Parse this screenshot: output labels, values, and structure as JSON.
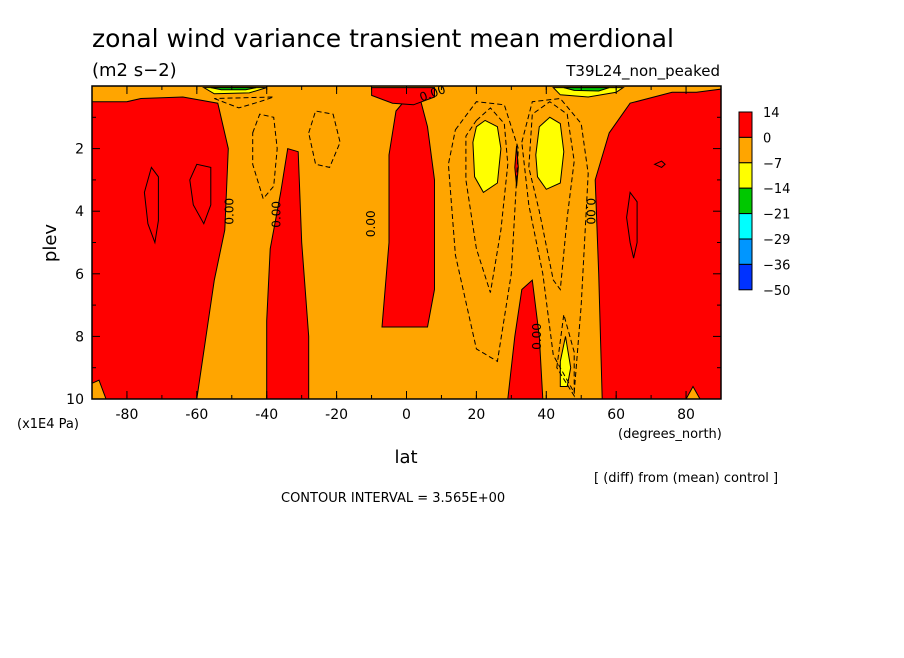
{
  "chart_data": {
    "type": "heatmap",
    "title": "zonal wind variance transient mean merdional",
    "units": "(m2 s−2)",
    "run_label": "T39L24_non_peaked",
    "xlabel": "lat",
    "x_unit_label": "(degrees_north)",
    "ylabel": "plev",
    "y_unit_label": "(x1E4 Pa)",
    "xlim": [
      -90,
      90
    ],
    "ylim": [
      10,
      0
    ],
    "x_ticks": [
      -80,
      -60,
      -40,
      -20,
      0,
      20,
      40,
      60,
      80
    ],
    "y_ticks": [
      2,
      4,
      6,
      8,
      10
    ],
    "contour_interval_text": "CONTOUR INTERVAL = 3.565E+00",
    "diff_note": "[ (diff) from (mean) control ]",
    "zero_contour_label": "0.00",
    "colorbar": {
      "levels": [
        "14",
        "0",
        "−7",
        "−14",
        "−21",
        "−29",
        "−36",
        "−50"
      ],
      "colors": [
        "#ff0000",
        "#ffa500",
        "#ffff00",
        "#00c800",
        "#00ffff",
        "#0096ff",
        "#0032ff"
      ]
    },
    "regions": [
      {
        "fill": "#ff0000",
        "points": [
          [
            -90,
            10
          ],
          [
            -90,
            0.5
          ],
          [
            -80,
            0.5
          ],
          [
            -76,
            0.4
          ],
          [
            -64,
            0.35
          ],
          [
            -54,
            0.55
          ],
          [
            -51,
            2
          ],
          [
            -52,
            4.6
          ],
          [
            -55,
            6.2
          ],
          [
            -60,
            10
          ]
        ]
      },
      {
        "fill": "#ff0000",
        "points": [
          [
            -40,
            10
          ],
          [
            -40,
            7.5
          ],
          [
            -39,
            5.2
          ],
          [
            -36,
            3.4
          ],
          [
            -34,
            2.0
          ],
          [
            -31,
            2.1
          ],
          [
            -30,
            5
          ],
          [
            -28,
            8
          ],
          [
            -28,
            10
          ]
        ]
      },
      {
        "fill": "#ff0000",
        "points": [
          [
            -7,
            7.7
          ],
          [
            -5,
            5
          ],
          [
            -5,
            2.2
          ],
          [
            -3,
            0.8
          ],
          [
            0,
            0.4
          ],
          [
            4,
            0.45
          ],
          [
            6,
            1.3
          ],
          [
            8,
            3
          ],
          [
            8,
            6.5
          ],
          [
            6,
            7.7
          ]
        ]
      },
      {
        "fill": "#ff0000",
        "points": [
          [
            -10,
            0.05
          ],
          [
            -10,
            0.3
          ],
          [
            -4,
            0.55
          ],
          [
            2,
            0.6
          ],
          [
            8,
            0.35
          ],
          [
            8,
            0.05
          ]
        ]
      },
      {
        "fill": "#ff0000",
        "points": [
          [
            29,
            10
          ],
          [
            31,
            8
          ],
          [
            33,
            6.5
          ],
          [
            36,
            6.2
          ],
          [
            38,
            8
          ],
          [
            39,
            10
          ]
        ]
      },
      {
        "fill": "#ff0000",
        "points": [
          [
            31,
            2.6
          ],
          [
            31.5,
            1.9
          ],
          [
            32,
            2.6
          ],
          [
            31.5,
            3.2
          ]
        ]
      },
      {
        "fill": "#ff0000",
        "points": [
          [
            56,
            10
          ],
          [
            55,
            6
          ],
          [
            54,
            3
          ],
          [
            58,
            1.5
          ],
          [
            64,
            0.55
          ],
          [
            76,
            0.2
          ],
          [
            83,
            0.2
          ],
          [
            90,
            0.1
          ],
          [
            90,
            10
          ]
        ]
      },
      {
        "fill": "#ffff00",
        "points": [
          [
            19,
            1.8
          ],
          [
            20,
            1.3
          ],
          [
            22.5,
            1.1
          ],
          [
            26,
            1.3
          ],
          [
            27,
            2
          ],
          [
            26,
            3.1
          ],
          [
            22,
            3.4
          ],
          [
            19.5,
            2.9
          ]
        ]
      },
      {
        "fill": "#ffff00",
        "points": [
          [
            37,
            2.2
          ],
          [
            38,
            1.3
          ],
          [
            41,
            1.0
          ],
          [
            44,
            1.2
          ],
          [
            45,
            2.1
          ],
          [
            44,
            3.1
          ],
          [
            40,
            3.3
          ],
          [
            37.5,
            2.9
          ]
        ]
      },
      {
        "fill": "#ffff00",
        "points": [
          [
            44,
            9.6
          ],
          [
            44,
            8.8
          ],
          [
            45.5,
            8.0
          ],
          [
            47,
            9.0
          ],
          [
            46,
            9.6
          ]
        ]
      },
      {
        "fill": "#ffff00",
        "points": [
          [
            -58,
            0.05
          ],
          [
            -55,
            0.25
          ],
          [
            -45,
            0.22
          ],
          [
            -40,
            0.05
          ]
        ]
      },
      {
        "fill": "#ffff00",
        "points": [
          [
            42,
            0.05
          ],
          [
            44,
            0.28
          ],
          [
            52,
            0.35
          ],
          [
            60,
            0.2
          ],
          [
            62,
            0.05
          ]
        ]
      },
      {
        "fill": "#00c800",
        "points": [
          [
            -56,
            0.05
          ],
          [
            -53,
            0.12
          ],
          [
            -46,
            0.12
          ],
          [
            -43,
            0.05
          ]
        ]
      },
      {
        "fill": "#00c800",
        "points": [
          [
            45,
            0.05
          ],
          [
            48,
            0.14
          ],
          [
            55,
            0.16
          ],
          [
            58,
            0.05
          ]
        ]
      },
      {
        "fill": "#ffa500",
        "points": [
          [
            -90,
            10
          ],
          [
            -90,
            9.5
          ],
          [
            -88,
            9.4
          ],
          [
            -86,
            10
          ]
        ]
      },
      {
        "fill": "#ffa500",
        "points": [
          [
            80,
            10
          ],
          [
            82,
            9.6
          ],
          [
            84,
            10
          ]
        ]
      }
    ],
    "dashed_contours": [
      [
        [
          -44,
          1.5
        ],
        [
          -42,
          0.9
        ],
        [
          -38,
          1.0
        ],
        [
          -37,
          2
        ],
        [
          -38,
          3.2
        ],
        [
          -41,
          3.6
        ],
        [
          -44,
          2.5
        ]
      ],
      [
        [
          -28,
          1.5
        ],
        [
          -26,
          0.8
        ],
        [
          -21,
          0.9
        ],
        [
          -19,
          1.8
        ],
        [
          -22,
          2.6
        ],
        [
          -26,
          2.5
        ]
      ],
      [
        [
          -55,
          0.4
        ],
        [
          -48,
          0.7
        ],
        [
          -42,
          0.5
        ],
        [
          -38,
          0.35
        ]
      ],
      [
        [
          20,
          1.1
        ],
        [
          24,
          0.7
        ],
        [
          28,
          1.2
        ],
        [
          29,
          2.5
        ],
        [
          27,
          4.6
        ],
        [
          24,
          6.6
        ],
        [
          20,
          5.2
        ],
        [
          17,
          3
        ],
        [
          17,
          1.6
        ]
      ],
      [
        [
          14,
          1.4
        ],
        [
          20,
          0.5
        ],
        [
          28,
          0.6
        ],
        [
          32,
          2
        ],
        [
          30,
          6
        ],
        [
          26,
          8.8
        ],
        [
          20,
          8.4
        ],
        [
          14,
          5.4
        ],
        [
          12,
          2.5
        ]
      ],
      [
        [
          35,
          2.6
        ],
        [
          36,
          0.9
        ],
        [
          41,
          0.5
        ],
        [
          46,
          0.9
        ],
        [
          48,
          2.4
        ],
        [
          46,
          4.2
        ],
        [
          44,
          6.5
        ],
        [
          42,
          6.2
        ],
        [
          38,
          4
        ]
      ],
      [
        [
          33,
          1.8
        ],
        [
          36,
          0.5
        ],
        [
          44,
          0.4
        ],
        [
          50,
          1.2
        ],
        [
          52,
          2.8
        ],
        [
          50,
          7
        ],
        [
          48,
          9.8
        ],
        [
          42,
          8.6
        ],
        [
          39,
          6
        ],
        [
          35,
          3.8
        ]
      ],
      [
        [
          43,
          9.0
        ],
        [
          45,
          7.3
        ],
        [
          48,
          8.5
        ],
        [
          48,
          9.9
        ]
      ]
    ],
    "solid_contours": [
      [
        [
          -75,
          3.4
        ],
        [
          -73,
          2.6
        ],
        [
          -71,
          2.9
        ],
        [
          -71,
          4.3
        ],
        [
          -72,
          5.0
        ],
        [
          -74,
          4.4
        ]
      ],
      [
        [
          -62,
          3
        ],
        [
          -60,
          2.5
        ],
        [
          -56,
          2.6
        ],
        [
          -56,
          3.8
        ],
        [
          -58,
          4.4
        ],
        [
          -61,
          3.8
        ]
      ],
      [
        [
          63,
          4.2
        ],
        [
          64,
          3.4
        ],
        [
          66,
          3.7
        ],
        [
          66,
          5
        ],
        [
          65,
          5.5
        ],
        [
          64,
          5
        ]
      ],
      [
        [
          71,
          2.5
        ],
        [
          73,
          2.4
        ],
        [
          74,
          2.5
        ],
        [
          73,
          2.6
        ]
      ]
    ],
    "zero_label_positions": [
      [
        -50.5,
        4.0,
        -90
      ],
      [
        -37,
        4.1,
        -90
      ],
      [
        -10,
        4.4,
        -90
      ],
      [
        7.5,
        0.25,
        -20
      ],
      [
        37.5,
        8.0,
        -90
      ],
      [
        52.5,
        4.0,
        90
      ]
    ]
  }
}
